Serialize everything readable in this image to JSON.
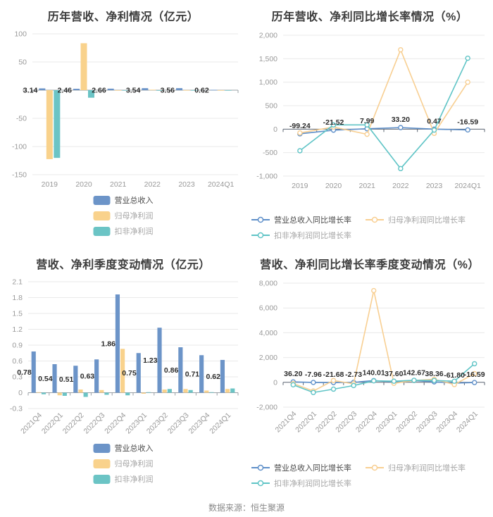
{
  "footer": {
    "source": "数据来源：恒生聚源"
  },
  "chart_data": [
    {
      "id": "annual-revenue-profit",
      "type": "bar",
      "title": "历年营收、净利情况（亿元）",
      "unit": "亿元",
      "categories": [
        "2019",
        "2020",
        "2021",
        "2022",
        "2023",
        "2024Q1"
      ],
      "ylim": [
        -150,
        100
      ],
      "yticks": [
        100,
        50,
        0,
        -50,
        -100,
        -150
      ],
      "ytick_labels": [
        "100",
        "50",
        "0",
        "-50",
        "-100",
        "-150"
      ],
      "grid": true,
      "legend_position": "bottom",
      "label_mode": "zero",
      "axis_color": "#9aa0a6",
      "series": [
        {
          "key": "revenue",
          "name": "营业总收入",
          "color": "#6C94C8",
          "values": [
            3.14,
            2.46,
            2.66,
            3.54,
            3.56,
            0.62
          ],
          "labels": [
            "3.14",
            "2.46",
            "2.66",
            "3.54",
            "3.56",
            "0.62"
          ]
        },
        {
          "key": "net-profit",
          "name": "归母净利润",
          "color": "#F9D28C",
          "values": [
            -122.4,
            83.3,
            0.05,
            0.84,
            0.17,
            0.07
          ]
        },
        {
          "key": "non-gaap-profit",
          "name": "扣非净利润",
          "color": "#6BC4C5",
          "values": [
            -120.2,
            -13.4,
            0.1,
            -0.2,
            0.15,
            0.08
          ]
        }
      ]
    },
    {
      "id": "annual-growth-rate",
      "type": "line",
      "title": "历年营收、净利同比增长率情况（%）",
      "unit": "%",
      "categories": [
        "2019",
        "2020",
        "2021",
        "2022",
        "2023",
        "2024Q1"
      ],
      "ylim": [
        -1000,
        2000
      ],
      "yticks": [
        2000,
        1500,
        1000,
        500,
        0,
        -500,
        -1000
      ],
      "ytick_labels": [
        "2,000",
        "1,500",
        "1,000",
        "500",
        "0",
        "-500",
        "-1,000"
      ],
      "grid": true,
      "legend_position": "bottom",
      "axis_color": "#5b6472",
      "series": [
        {
          "key": "revenue-growth",
          "name": "营业总收入同比增长率",
          "color": "#5E8FC9",
          "values": [
            -99.24,
            -21.52,
            7.99,
            33.2,
            0.47,
            -16.59
          ],
          "labels": [
            "-99.24",
            "-21.52",
            "7.99",
            "33.20",
            "0.47",
            "-16.59"
          ]
        },
        {
          "key": "net-profit-growth",
          "name": "归母净利润同比增长率",
          "color": "#F8CF92",
          "values": [
            -80,
            45,
            -110,
            1690,
            -90,
            1000
          ]
        },
        {
          "key": "non-gaap-growth",
          "name": "扣非净利润同比增长率",
          "color": "#5FC4C6",
          "values": [
            -460,
            90,
            90,
            -840,
            -20,
            1510
          ]
        }
      ]
    },
    {
      "id": "quarterly-revenue-profit",
      "type": "bar",
      "title": "营收、净利季度变动情况（亿元）",
      "unit": "亿元",
      "categories": [
        "2021Q4",
        "2022Q1",
        "2022Q2",
        "2022Q3",
        "2022Q4",
        "2023Q1",
        "2023Q2",
        "2023Q3",
        "2023Q4",
        "2024Q1"
      ],
      "ylim": [
        -0.3,
        2.1
      ],
      "yticks": [
        2.1,
        1.8,
        1.5,
        1.2,
        0.9,
        0.6,
        0.3,
        0,
        -0.3
      ],
      "ytick_labels": [
        "2.1",
        "1.8",
        "1.5",
        "1.2",
        "0.9",
        "0.6",
        "0.3",
        "0",
        "-0.3"
      ],
      "grid": true,
      "legend_position": "bottom",
      "label_mode": "half",
      "axis_color": "#9aa0a6",
      "series": [
        {
          "key": "revenue",
          "name": "营业总收入",
          "color": "#6C94C8",
          "values": [
            0.78,
            0.54,
            0.51,
            0.63,
            1.86,
            0.75,
            1.23,
            0.86,
            0.71,
            0.62
          ],
          "labels": [
            "0.78",
            "0.54",
            "0.51",
            "0.63",
            "1.86",
            "0.75",
            "1.23",
            "0.86",
            "0.71",
            "0.62"
          ]
        },
        {
          "key": "net-profit",
          "name": "归母净利润",
          "color": "#F9D28C",
          "values": [
            0.01,
            -0.05,
            0.06,
            0.05,
            0.83,
            -0.02,
            0.06,
            0.07,
            0.04,
            0.07
          ]
        },
        {
          "key": "non-gaap-profit",
          "name": "扣非净利润",
          "color": "#6BC4C5",
          "values": [
            -0.03,
            -0.06,
            -0.08,
            -0.04,
            -0.05,
            0.01,
            0.07,
            0.05,
            0.01,
            0.08
          ]
        }
      ]
    },
    {
      "id": "quarterly-growth-rate",
      "type": "line",
      "title": "营收、净利同比增长率季度变动情况（%）",
      "unit": "%",
      "categories": [
        "2021Q4",
        "2022Q1",
        "2022Q2",
        "2022Q3",
        "2022Q4",
        "2023Q1",
        "2023Q2",
        "2023Q3",
        "2023Q4",
        "2024Q1"
      ],
      "ylim": [
        -2000,
        8000
      ],
      "yticks": [
        8000,
        6000,
        4000,
        2000,
        0,
        -2000
      ],
      "ytick_labels": [
        "8,000",
        "6,000",
        "4,000",
        "2,000",
        "0",
        "-2,000"
      ],
      "grid": true,
      "legend_position": "bottom",
      "axis_color": "#5b6472",
      "series": [
        {
          "key": "revenue-growth",
          "name": "营业总收入同比增长率",
          "color": "#5E8FC9",
          "values": [
            36.2,
            -7.96,
            -21.68,
            -2.73,
            140.01,
            37.6,
            142.67,
            38.36,
            -61.8,
            -16.59
          ],
          "labels": [
            "36.20",
            "-7.96",
            "-21.68",
            "-2.73",
            "140.01",
            "37.60",
            "142.67",
            "38.36",
            "-61.80",
            "-16.59"
          ]
        },
        {
          "key": "net-profit-growth",
          "name": "归母净利润同比增长率",
          "color": "#F8CF92",
          "values": [
            -100,
            -700,
            150,
            -120,
            7400,
            -80,
            150,
            250,
            -180,
            700
          ]
        },
        {
          "key": "non-gaap-growth",
          "name": "扣非净利润同比增长率",
          "color": "#5FC4C6",
          "values": [
            -200,
            -820,
            -550,
            -260,
            120,
            90,
            160,
            150,
            90,
            1500
          ]
        }
      ]
    }
  ]
}
